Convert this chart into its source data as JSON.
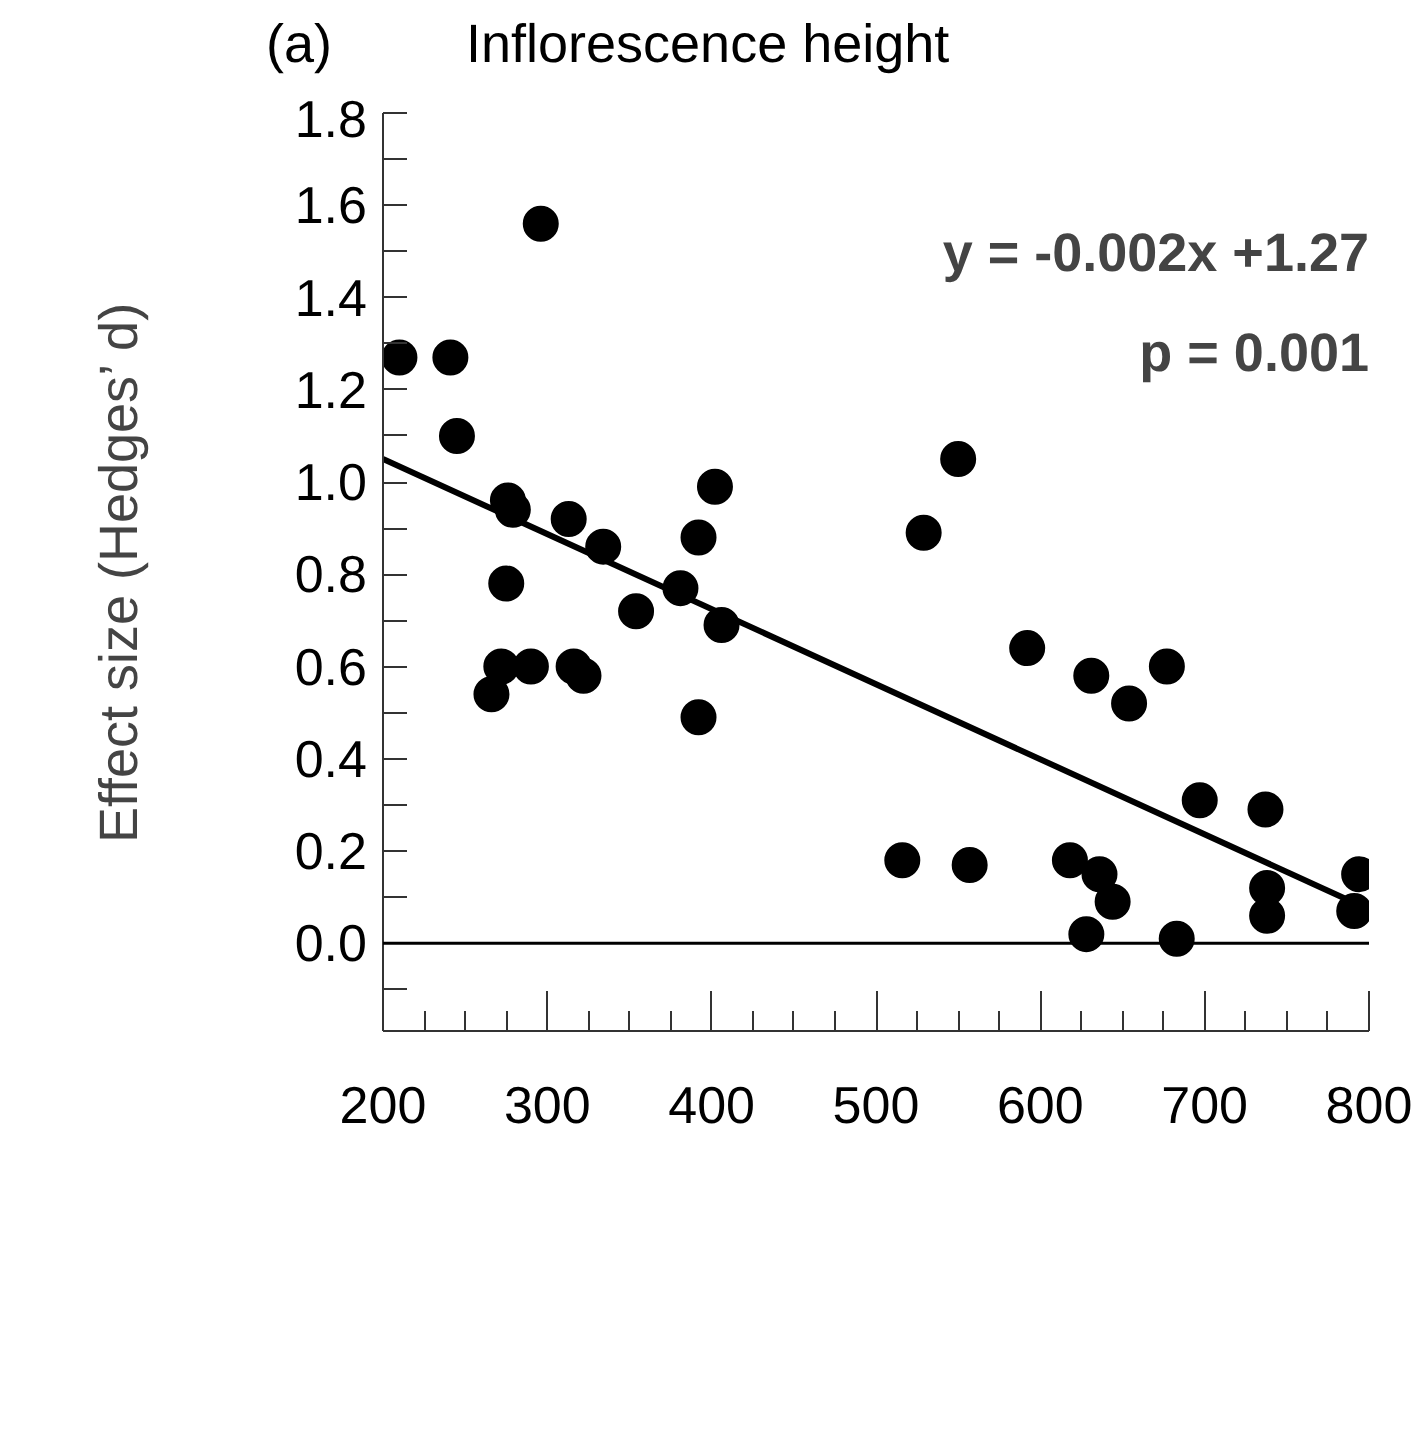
{
  "chart_data": {
    "type": "scatter",
    "title": "Inflorescence height",
    "ylabel": "Effect size (Hedges’ d)",
    "annotations": [
      "(a)",
      "y = -0.002x +1.27",
      "p = 0.001"
    ],
    "xlim": [
      200,
      800
    ],
    "ylim": [
      -0.19,
      1.8
    ],
    "xticks": [
      200,
      {
        "value": 225,
        "label": null
      },
      {
        "value": 250,
        "label": null
      },
      {
        "value": 275,
        "label": null
      },
      300,
      {
        "value": 325,
        "label": null
      },
      {
        "value": 350,
        "label": null
      },
      {
        "value": 375,
        "label": null
      },
      400,
      {
        "value": 425,
        "label": null
      },
      {
        "value": 450,
        "label": null
      },
      {
        "value": 475,
        "label": null
      },
      500,
      {
        "value": 525,
        "label": null
      },
      {
        "value": 550,
        "label": null
      },
      {
        "value": 575,
        "label": null
      },
      600,
      {
        "value": 625,
        "label": null
      },
      {
        "value": 650,
        "label": null
      },
      {
        "value": 675,
        "label": null
      },
      700,
      {
        "value": 725,
        "label": null
      },
      {
        "value": 750,
        "label": null
      },
      {
        "value": 775,
        "label": null
      },
      800
    ],
    "yticks": [
      {
        "value": -0.1,
        "label": null
      },
      {
        "value": 0,
        "label": "0.0"
      },
      {
        "value": 0.1,
        "label": null
      },
      0.2,
      {
        "value": 0.3,
        "label": null
      },
      0.4,
      {
        "value": 0.5,
        "label": null
      },
      0.6,
      {
        "value": 0.7,
        "label": null
      },
      0.8,
      {
        "value": 0.9,
        "label": null
      },
      {
        "value": 1,
        "label": "1.0"
      },
      {
        "value": 1.1,
        "label": null
      },
      1.2,
      {
        "value": 1.3,
        "label": null
      },
      1.4,
      {
        "value": 1.5,
        "label": null
      },
      1.6,
      {
        "value": 1.7,
        "label": null
      },
      1.8
    ],
    "grid": false,
    "ref_lines": [
      {
        "axis": "y",
        "value": 0,
        "color": "#000000"
      }
    ],
    "series": [
      {
        "color": "#000000",
        "marker": "circle",
        "x": [
          210,
          241,
          245,
          276,
          279,
          275,
          272,
          266,
          290,
          296,
          313,
          316,
          322,
          334,
          354,
          381,
          392,
          402,
          406,
          392,
          550,
          529,
          516,
          557,
          592,
          631,
          654,
          677,
          697,
          737,
          618,
          636,
          644,
          628,
          683,
          738,
          738,
          794,
          791
        ],
        "values": [
          1.27,
          1.27,
          1.1,
          0.96,
          0.94,
          0.78,
          0.6,
          0.54,
          0.6,
          1.56,
          0.92,
          0.6,
          0.58,
          0.86,
          0.72,
          0.77,
          0.88,
          0.99,
          0.69,
          0.49,
          1.05,
          0.89,
          0.18,
          0.17,
          0.64,
          0.58,
          0.52,
          0.6,
          0.31,
          0.29,
          0.18,
          0.15,
          0.09,
          0.02,
          0.01,
          0.12,
          0.06,
          0.15,
          0.07
        ]
      },
      {
        "type": "line",
        "color": "#000000",
        "line_style": "solid",
        "x": [
          200,
          796
        ],
        "values": [
          1.05,
          0.08
        ]
      }
    ]
  }
}
